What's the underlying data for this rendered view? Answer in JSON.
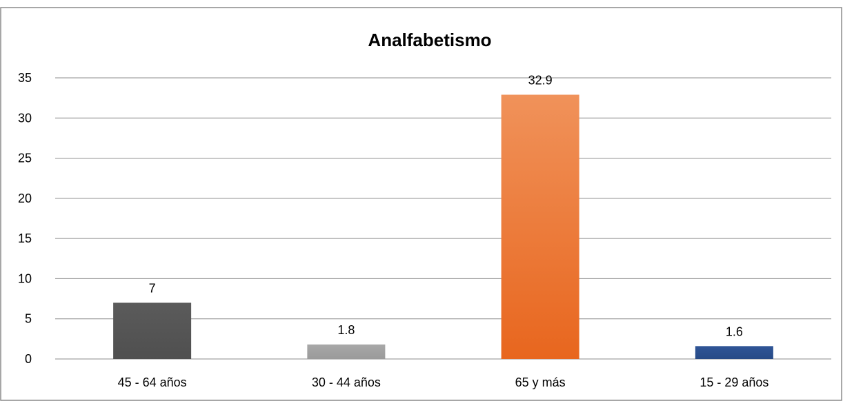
{
  "chart_data": {
    "type": "bar",
    "title": "Analfabetismo",
    "categories": [
      "45 - 64 años",
      "30 - 44 años",
      "65 y más",
      "15 - 29 años"
    ],
    "values": [
      7,
      1.8,
      32.9,
      1.6
    ],
    "value_labels": [
      "7",
      "1.8",
      "32.9",
      "1.6"
    ],
    "y_ticks": [
      "0",
      "5",
      "10",
      "15",
      "20",
      "25",
      "30",
      "35"
    ],
    "ylim": [
      0,
      35
    ],
    "xlabel": "",
    "ylabel": "",
    "grid": true,
    "legend": "none",
    "bar_colors": [
      {
        "top": "#5b5b5b",
        "bottom": "#4f4f4f"
      },
      {
        "top": "#a8a8a8",
        "bottom": "#9a9a9a"
      },
      {
        "top": "#f0925a",
        "bottom": "#e8661e"
      },
      {
        "top": "#2f5597",
        "bottom": "#274a86"
      }
    ],
    "grid_color": "#8c8c8c",
    "border_color": "#8a8a8a"
  }
}
